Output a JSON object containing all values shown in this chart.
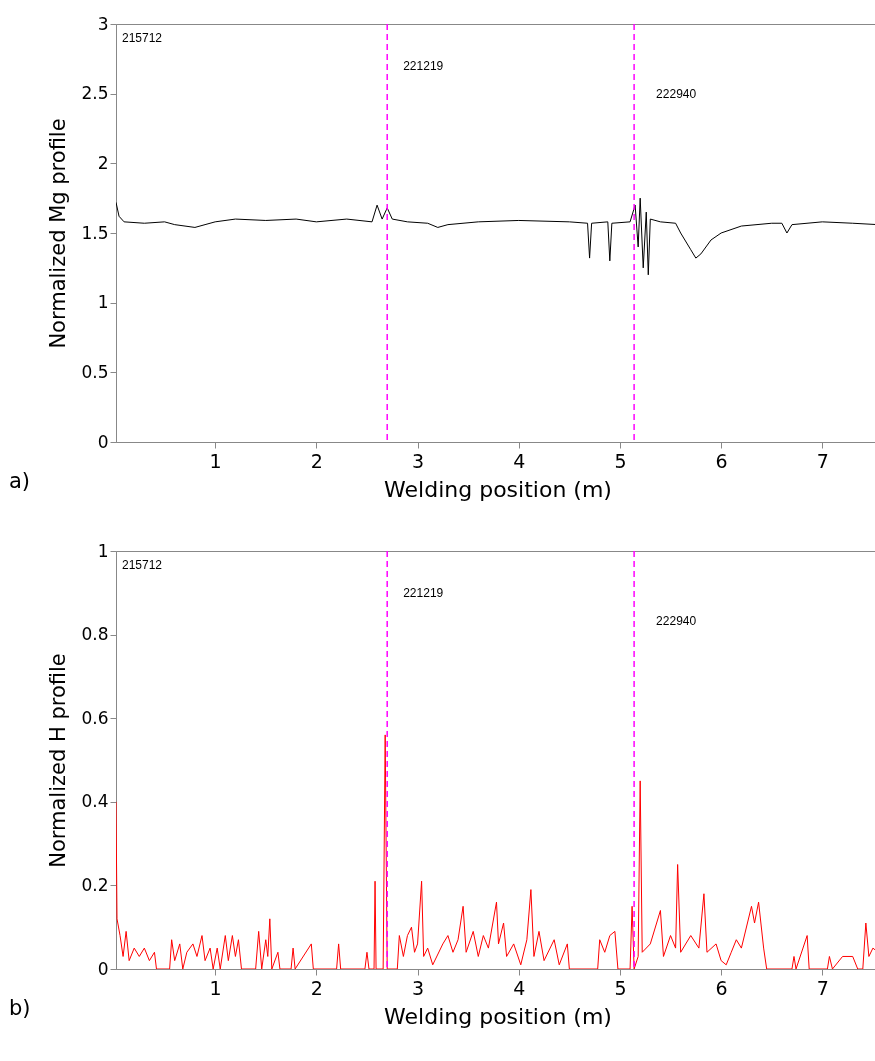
{
  "chart_data": [
    {
      "type": "line",
      "xlabel": "Welding position (m)",
      "ylabel": "Normalized Mg profile",
      "xlim": [
        0.02,
        7.56
      ],
      "xticks": [
        1,
        2,
        3,
        4,
        5,
        6,
        7
      ],
      "ylim": [
        0,
        3
      ],
      "yticks": [
        0,
        0.5,
        1,
        1.5,
        2,
        2.5,
        3
      ],
      "grid": false,
      "series": [
        {
          "color": "#000000",
          "x": [
            0.02,
            0.05,
            0.1,
            0.3,
            0.5,
            0.6,
            0.8,
            0.9,
            1.0,
            1.2,
            1.5,
            1.8,
            2.0,
            2.3,
            2.55,
            2.6,
            2.65,
            2.7,
            2.75,
            2.9,
            3.1,
            3.2,
            3.3,
            3.6,
            4.0,
            4.5,
            4.68,
            4.7,
            4.72,
            4.88,
            4.9,
            4.92,
            5.1,
            5.15,
            5.18,
            5.2,
            5.23,
            5.26,
            5.28,
            5.3,
            5.4,
            5.55,
            5.6,
            5.7,
            5.75,
            5.8,
            5.9,
            6.0,
            6.2,
            6.5,
            6.6,
            6.65,
            6.7,
            7.0,
            7.3,
            7.55
          ],
          "values": [
            1.72,
            1.62,
            1.58,
            1.57,
            1.58,
            1.56,
            1.54,
            1.56,
            1.58,
            1.6,
            1.59,
            1.6,
            1.58,
            1.6,
            1.58,
            1.7,
            1.6,
            1.68,
            1.6,
            1.58,
            1.57,
            1.54,
            1.56,
            1.58,
            1.59,
            1.58,
            1.57,
            1.32,
            1.57,
            1.58,
            1.3,
            1.57,
            1.58,
            1.7,
            1.4,
            1.75,
            1.25,
            1.65,
            1.2,
            1.6,
            1.58,
            1.57,
            1.5,
            1.38,
            1.32,
            1.35,
            1.45,
            1.5,
            1.55,
            1.57,
            1.57,
            1.5,
            1.56,
            1.58,
            1.57,
            1.56
          ]
        }
      ],
      "ref_lines": [
        {
          "axis": "x",
          "value": 2.7,
          "color": "#ff00ff",
          "line_style": "dashed"
        },
        {
          "axis": "x",
          "value": 5.14,
          "color": "#ff00ff",
          "line_style": "dashed"
        }
      ],
      "annotations": [
        "215712",
        "221219",
        "222940",
        "a)"
      ]
    },
    {
      "type": "line",
      "xlabel": "Welding position (m)",
      "ylabel": "Normalized H profile",
      "xlim": [
        0.02,
        7.56
      ],
      "xticks": [
        1,
        2,
        3,
        4,
        5,
        6,
        7
      ],
      "ylim": [
        0,
        1
      ],
      "yticks": [
        0,
        0.2,
        0.4,
        0.6,
        0.8,
        1
      ],
      "grid": false,
      "series": [
        {
          "color": "#ff0000",
          "x": [
            0.02,
            0.03,
            0.06,
            0.09,
            0.12,
            0.15,
            0.2,
            0.25,
            0.3,
            0.35,
            0.4,
            0.42,
            0.55,
            0.57,
            0.6,
            0.65,
            0.68,
            0.72,
            0.78,
            0.82,
            0.87,
            0.9,
            0.95,
            0.98,
            1.02,
            1.05,
            1.1,
            1.13,
            1.17,
            1.2,
            1.23,
            1.26,
            1.4,
            1.43,
            1.46,
            1.5,
            1.52,
            1.54,
            1.56,
            1.62,
            1.64,
            1.75,
            1.77,
            1.79,
            1.95,
            1.97,
            2.2,
            2.22,
            2.24,
            2.48,
            2.5,
            2.52,
            2.57,
            2.58,
            2.59,
            2.66,
            2.68,
            2.7,
            2.8,
            2.82,
            2.86,
            2.9,
            2.94,
            2.97,
            3.0,
            3.04,
            3.06,
            3.1,
            3.15,
            3.25,
            3.3,
            3.35,
            3.4,
            3.45,
            3.48,
            3.55,
            3.6,
            3.65,
            3.7,
            3.78,
            3.8,
            3.85,
            3.88,
            3.95,
            4.02,
            4.08,
            4.12,
            4.15,
            4.2,
            4.25,
            4.35,
            4.4,
            4.48,
            4.5,
            4.78,
            4.8,
            4.85,
            4.9,
            4.95,
            4.98,
            5.1,
            5.12,
            5.14,
            5.18,
            5.2,
            5.22,
            5.3,
            5.4,
            5.43,
            5.5,
            5.55,
            5.57,
            5.6,
            5.7,
            5.78,
            5.83,
            5.86,
            5.95,
            6.0,
            6.05,
            6.1,
            6.15,
            6.2,
            6.3,
            6.33,
            6.37,
            6.42,
            6.45,
            6.7,
            6.72,
            6.74,
            6.85,
            6.87,
            7.05,
            7.07,
            7.1,
            7.2,
            7.3,
            7.35,
            7.4,
            7.43,
            7.46,
            7.5,
            7.55
          ],
          "values": [
            0.4,
            0.12,
            0.08,
            0.03,
            0.09,
            0.02,
            0.05,
            0.03,
            0.05,
            0.02,
            0.04,
            0,
            0,
            0.07,
            0.02,
            0.06,
            0,
            0.04,
            0.06,
            0.03,
            0.08,
            0.02,
            0.05,
            0,
            0.05,
            0,
            0.08,
            0.02,
            0.08,
            0.03,
            0.07,
            0,
            0,
            0.09,
            0,
            0.07,
            0.03,
            0.12,
            0,
            0.04,
            0,
            0,
            0.05,
            0,
            0.06,
            0,
            0,
            0.06,
            0,
            0,
            0.04,
            0,
            0,
            0.21,
            0,
            0,
            0.56,
            0,
            0,
            0.08,
            0.03,
            0.08,
            0.1,
            0.04,
            0.06,
            0.21,
            0.03,
            0.05,
            0.01,
            0.06,
            0.08,
            0.04,
            0.07,
            0.15,
            0.04,
            0.09,
            0.03,
            0.08,
            0.05,
            0.16,
            0.06,
            0.11,
            0.03,
            0.06,
            0.01,
            0.07,
            0.19,
            0.03,
            0.09,
            0.02,
            0.07,
            0.01,
            0.06,
            0,
            0,
            0.07,
            0.04,
            0.08,
            0.09,
            0,
            0,
            0.15,
            0,
            0.03,
            0.45,
            0.04,
            0.06,
            0.14,
            0.03,
            0.08,
            0.05,
            0.25,
            0.04,
            0.08,
            0.05,
            0.18,
            0.04,
            0.06,
            0.02,
            0.01,
            0.04,
            0.07,
            0.05,
            0.15,
            0.11,
            0.16,
            0.05,
            0,
            0,
            0.03,
            0,
            0.08,
            0,
            0,
            0.03,
            0,
            0.03,
            0.03,
            0,
            0,
            0.11,
            0.03,
            0.05,
            0.04
          ]
        }
      ],
      "ref_lines": [
        {
          "axis": "x",
          "value": 2.7,
          "color": "#ff00ff",
          "line_style": "dashed"
        },
        {
          "axis": "x",
          "value": 5.14,
          "color": "#ff00ff",
          "line_style": "dashed"
        }
      ],
      "annotations": [
        "215712",
        "221219",
        "222940",
        "b)"
      ]
    }
  ]
}
